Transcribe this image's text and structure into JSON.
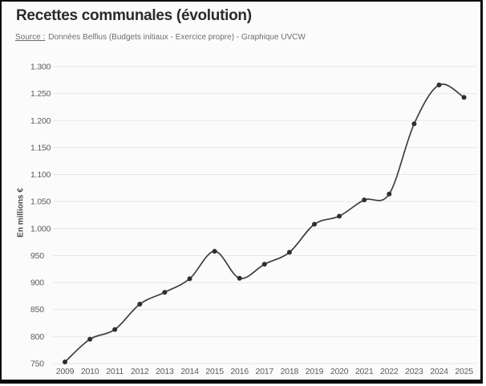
{
  "header": {
    "title": "Recettes communales (évolution)",
    "source_label": "Source :",
    "source_text": "Données Belfius (Budgets initiaux - Exercice propre) - Graphique UVCW"
  },
  "chart_data": {
    "type": "line",
    "line_shape": "spline",
    "marker": "circle",
    "title": "Recettes communales (évolution)",
    "xlabel": "",
    "ylabel": "En millions €",
    "categories": [
      "2009",
      "2010",
      "2011",
      "2012",
      "2013",
      "2014",
      "2015",
      "2016",
      "2017",
      "2018",
      "2019",
      "2020",
      "2021",
      "2022",
      "2023",
      "2024",
      "2025"
    ],
    "values": [
      753,
      795,
      813,
      860,
      882,
      907,
      958,
      908,
      934,
      956,
      1008,
      1023,
      1053,
      1064,
      1194,
      1266,
      1243
    ],
    "ylim": [
      750,
      1300
    ],
    "ytick_step": 50,
    "ytick_labels": [
      "750",
      "800",
      "850",
      "900",
      "950",
      "1.000",
      "1.050",
      "1.100",
      "1.150",
      "1.200",
      "1.250",
      "1.300"
    ],
    "grid": true,
    "legend": false,
    "colors": {
      "line": "#3f3f3f",
      "marker": "#2e2e2e",
      "grid": "#e7e7e7",
      "tick_label": "#5b5b5b",
      "title": "#2b2b2b",
      "source": "#6e6e6e",
      "background": "#fbfbfb",
      "border": "#0b0b0b"
    }
  }
}
